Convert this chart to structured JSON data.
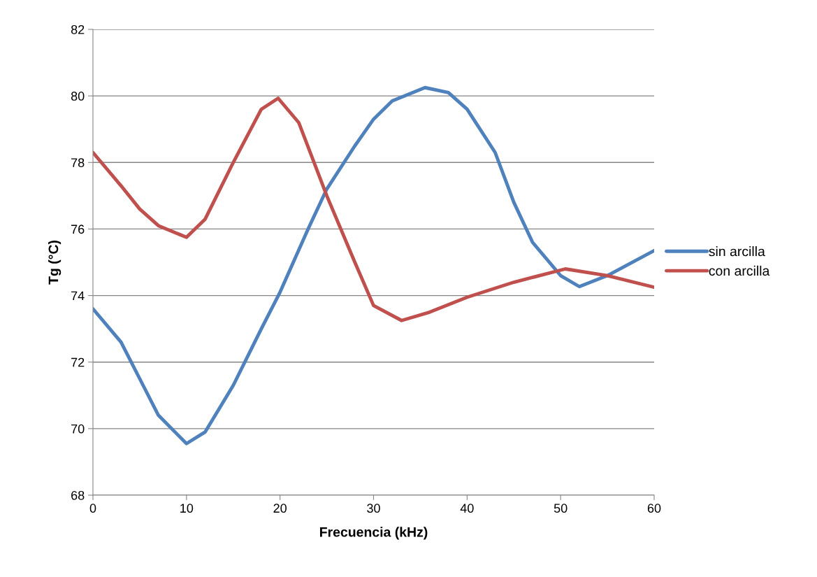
{
  "chart_data": {
    "type": "line",
    "xlabel": "Frecuencia (kHz)",
    "ylabel": "Tg (°C)",
    "xlim": [
      0,
      60
    ],
    "xticks": [
      0,
      10,
      20,
      30,
      40,
      50,
      60
    ],
    "ylim": [
      68,
      82
    ],
    "yticks": [
      68,
      70,
      72,
      74,
      76,
      78,
      80,
      82
    ],
    "grid": "y",
    "legend": "right",
    "marker": "none",
    "line_style": "solid",
    "series": [
      {
        "name": "sin arcilla",
        "color": "#4f81bd",
        "x": [
          0,
          3,
          5,
          7,
          10,
          12,
          15,
          18,
          20,
          23,
          25,
          28,
          30,
          32,
          35.5,
          38,
          40,
          43,
          45,
          47,
          50,
          52,
          55,
          58,
          60
        ],
        "values": [
          73.6,
          72.6,
          71.5,
          70.4,
          69.55,
          69.9,
          71.3,
          73.0,
          74.1,
          76.0,
          77.2,
          78.5,
          79.3,
          79.85,
          80.25,
          80.1,
          79.6,
          78.3,
          76.8,
          75.6,
          74.6,
          74.27,
          74.6,
          75.05,
          75.35
        ]
      },
      {
        "name": "con arcilla",
        "color": "#c0504d",
        "x": [
          0,
          3,
          5,
          7,
          10,
          12,
          15,
          18,
          19.8,
          22,
          25,
          28,
          30,
          33,
          36,
          40,
          45,
          50.5,
          55,
          60
        ],
        "values": [
          78.3,
          77.3,
          76.6,
          76.1,
          75.75,
          76.3,
          78.0,
          79.6,
          79.93,
          79.2,
          77.0,
          75.0,
          73.7,
          73.25,
          73.5,
          73.95,
          74.4,
          74.8,
          74.6,
          74.25
        ]
      }
    ]
  }
}
